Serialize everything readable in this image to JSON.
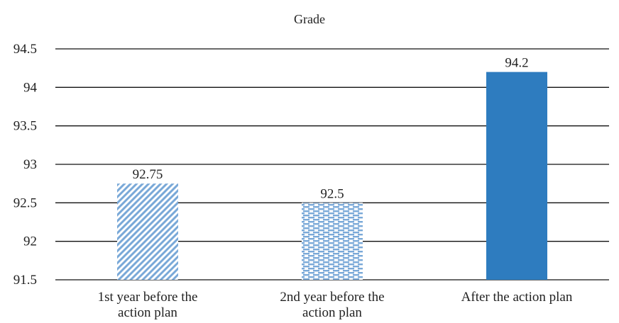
{
  "chart_data": {
    "type": "bar",
    "title": "Grade",
    "xlabel": "",
    "ylabel": "",
    "ylim": [
      91.5,
      94.5
    ],
    "yticks": [
      "94.5",
      "94",
      "93.5",
      "93",
      "92.5",
      "92",
      "91.5"
    ],
    "categories": [
      [
        "1st year before the",
        "action plan"
      ],
      [
        "2nd year before the",
        "action plan"
      ],
      [
        "After the action plan"
      ]
    ],
    "values": [
      92.75,
      92.5,
      94.2
    ],
    "data_labels": [
      "92.75",
      "92.5",
      "94.2"
    ],
    "fills": [
      "diagonal-hatch",
      "dashed-horizontal",
      "solid"
    ],
    "grid": true,
    "legend": "none",
    "colors": {
      "bar": "#2e7cbf",
      "bar_light": "#a9c7e6",
      "grid": "#111111",
      "text": "#222222"
    }
  }
}
